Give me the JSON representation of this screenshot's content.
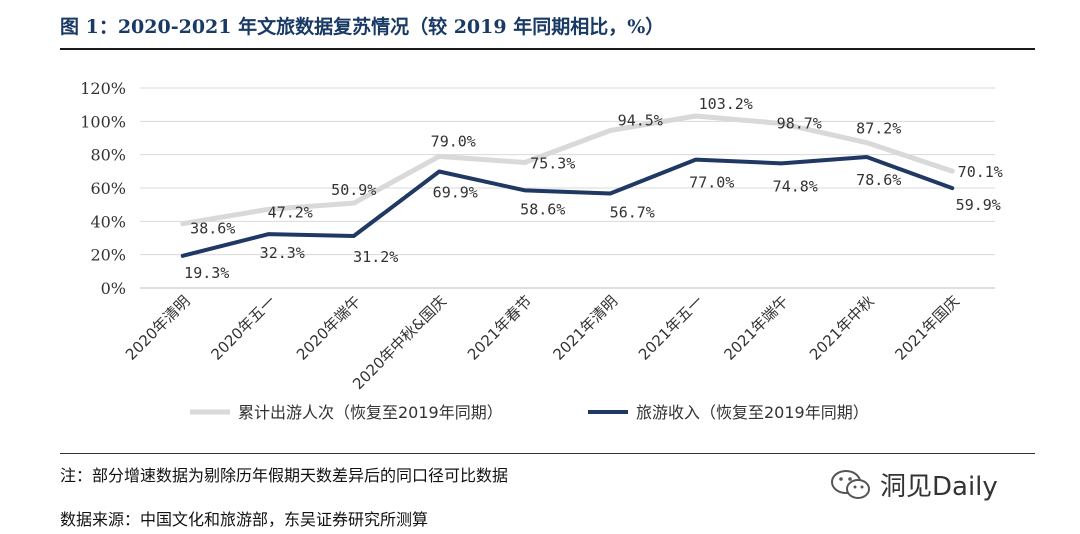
{
  "header": {
    "title": "图 1：2020-2021 年文旅数据复苏情况（较 2019 年同期相比，%）"
  },
  "chart_data": {
    "type": "line",
    "categories": [
      "2020年清明",
      "2020年五一",
      "2020年端午",
      "2020年中秋&国庆",
      "2021年春节",
      "2021年清明",
      "2021年五一",
      "2021年端午",
      "2021年中秋",
      "2021年国庆"
    ],
    "series": [
      {
        "name": "累计出游人次（恢复至2019年同期）",
        "values": [
          38.6,
          47.2,
          50.9,
          79.0,
          75.3,
          94.5,
          103.2,
          98.7,
          87.2,
          70.1
        ],
        "color": "#d9d9d9"
      },
      {
        "name": "旅游收入（恢复至2019年同期）",
        "values": [
          19.3,
          32.3,
          31.2,
          69.9,
          58.6,
          56.7,
          77.0,
          74.8,
          78.6,
          59.9
        ],
        "color": "#1f3864"
      }
    ],
    "data_labels": {
      "s0": [
        "38.6%",
        "47.2%",
        "50.9%",
        "79.0%",
        "75.3%",
        "94.5%",
        "103.2%",
        "98.7%",
        "87.2%",
        "70.1%"
      ],
      "s1": [
        "19.3%",
        "32.3%",
        "31.2%",
        "69.9%",
        "58.6%",
        "56.7%",
        "77.0%",
        "74.8%",
        "78.6%",
        "59.9%"
      ]
    },
    "ylim": [
      0,
      120
    ],
    "yticks": [
      "0%",
      "20%",
      "40%",
      "60%",
      "80%",
      "100%",
      "120%"
    ],
    "grid": true,
    "legend_position": "bottom"
  },
  "footer": {
    "note": "注：部分增速数据为剔除历年假期天数差异后的同口径可比数据",
    "source": "数据来源：中国文化和旅游部，东吴证券研究所测算"
  },
  "watermark": {
    "text": "洞见Daily",
    "icon": "wechat-icon"
  }
}
